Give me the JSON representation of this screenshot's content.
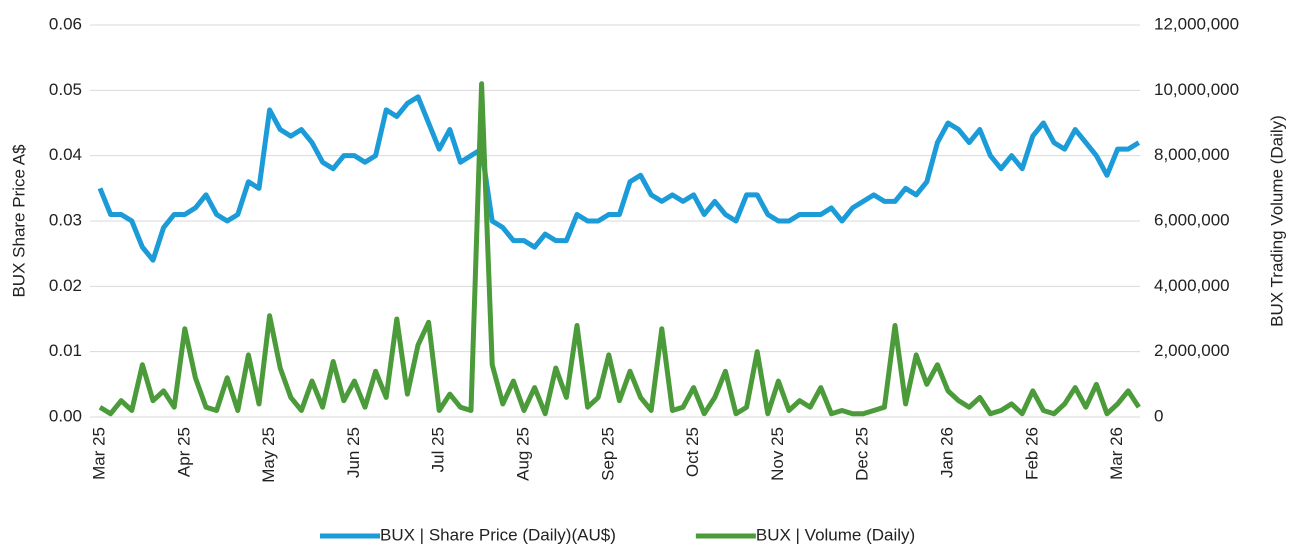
{
  "chart_data": {
    "type": "line",
    "y_label": "BUX Share Price A$",
    "y2_label": "BUX Trading Volume (Daily)",
    "categories": [
      "Mar 25",
      null,
      null,
      null,
      null,
      null,
      null,
      null,
      "Apr 25",
      null,
      null,
      null,
      null,
      null,
      null,
      null,
      "May 25",
      null,
      null,
      null,
      null,
      null,
      null,
      null,
      "Jun 25",
      null,
      null,
      null,
      null,
      null,
      null,
      null,
      "Jul 25",
      null,
      null,
      null,
      null,
      null,
      null,
      null,
      "Aug 25",
      null,
      null,
      null,
      null,
      null,
      null,
      null,
      "Sep 25",
      null,
      null,
      null,
      null,
      null,
      null,
      null,
      "Oct 25",
      null,
      null,
      null,
      null,
      null,
      null,
      null,
      "Nov 25",
      null,
      null,
      null,
      null,
      null,
      null,
      null,
      "Dec 25",
      null,
      null,
      null,
      null,
      null,
      null,
      null,
      "Jan 26",
      null,
      null,
      null,
      null,
      null,
      null,
      null,
      "Feb 26",
      null,
      null,
      null,
      null,
      null,
      null,
      null,
      "Mar 26",
      null,
      null
    ],
    "series": [
      {
        "name": "BUX | Share Price (Daily)(AU$)",
        "color": "#1b9bd7",
        "values": [
          0.035,
          0.031,
          0.031,
          0.03,
          0.026,
          0.024,
          0.029,
          0.031,
          0.031,
          0.032,
          0.034,
          0.031,
          0.03,
          0.031,
          0.036,
          0.035,
          0.047,
          0.044,
          0.043,
          0.044,
          0.042,
          0.039,
          0.038,
          0.04,
          0.04,
          0.039,
          0.04,
          0.047,
          0.046,
          0.048,
          0.049,
          0.045,
          0.041,
          0.044,
          0.039,
          0.04,
          0.041,
          0.03,
          0.029,
          0.027,
          0.027,
          0.026,
          0.028,
          0.027,
          0.027,
          0.031,
          0.03,
          0.03,
          0.031,
          0.031,
          0.036,
          0.037,
          0.034,
          0.033,
          0.034,
          0.033,
          0.034,
          0.031,
          0.033,
          0.031,
          0.03,
          0.034,
          0.034,
          0.031,
          0.03,
          0.03,
          0.031,
          0.031,
          0.031,
          0.032,
          0.03,
          0.032,
          0.033,
          0.034,
          0.033,
          0.033,
          0.035,
          0.034,
          0.036,
          0.042,
          0.045,
          0.044,
          0.042,
          0.044,
          0.04,
          0.038,
          0.04,
          0.038,
          0.043,
          0.045,
          0.042,
          0.041,
          0.044,
          0.042,
          0.04,
          0.037,
          0.041,
          0.041,
          0.042
        ]
      },
      {
        "name": "BUX | Volume (Daily)",
        "color": "#4b9b3a",
        "axis": "y2",
        "values": [
          300000,
          100000,
          500000,
          200000,
          1600000,
          500000,
          800000,
          300000,
          2700000,
          1200000,
          300000,
          200000,
          1200000,
          200000,
          1900000,
          400000,
          3100000,
          1500000,
          600000,
          200000,
          1100000,
          300000,
          1700000,
          500000,
          1100000,
          300000,
          1400000,
          600000,
          3000000,
          700000,
          2200000,
          2900000,
          200000,
          700000,
          300000,
          200000,
          10200000,
          1600000,
          400000,
          1100000,
          200000,
          900000,
          100000,
          1500000,
          600000,
          2800000,
          300000,
          600000,
          1900000,
          500000,
          1400000,
          600000,
          200000,
          2700000,
          200000,
          300000,
          900000,
          100000,
          600000,
          1400000,
          100000,
          300000,
          2000000,
          100000,
          1100000,
          200000,
          500000,
          300000,
          900000,
          100000,
          200000,
          100000,
          100000,
          200000,
          300000,
          2800000,
          400000,
          1900000,
          1000000,
          1600000,
          800000,
          500000,
          300000,
          600000,
          100000,
          200000,
          400000,
          100000,
          800000,
          200000,
          100000,
          400000,
          900000,
          300000,
          1000000,
          100000,
          400000,
          800000,
          300000
        ]
      }
    ],
    "ylim": [
      0,
      0.06
    ],
    "yticks": [
      {
        "value": 0,
        "label": "0.00"
      },
      0.01,
      0.02,
      0.03,
      0.04,
      0.05,
      0.06
    ],
    "y2lim": [
      0,
      12000000
    ],
    "y2ticks": [
      0,
      {
        "value": 2000000,
        "label": "2,000,000"
      },
      {
        "value": 4000000,
        "label": "4,000,000"
      },
      {
        "value": 6000000,
        "label": "6,000,000"
      },
      {
        "value": 8000000,
        "label": "8,000,000"
      },
      {
        "value": 10000000,
        "label": "10,000,000"
      },
      {
        "value": 12000000,
        "label": "12,000,000"
      }
    ],
    "grid": true,
    "legend": "bottom"
  }
}
